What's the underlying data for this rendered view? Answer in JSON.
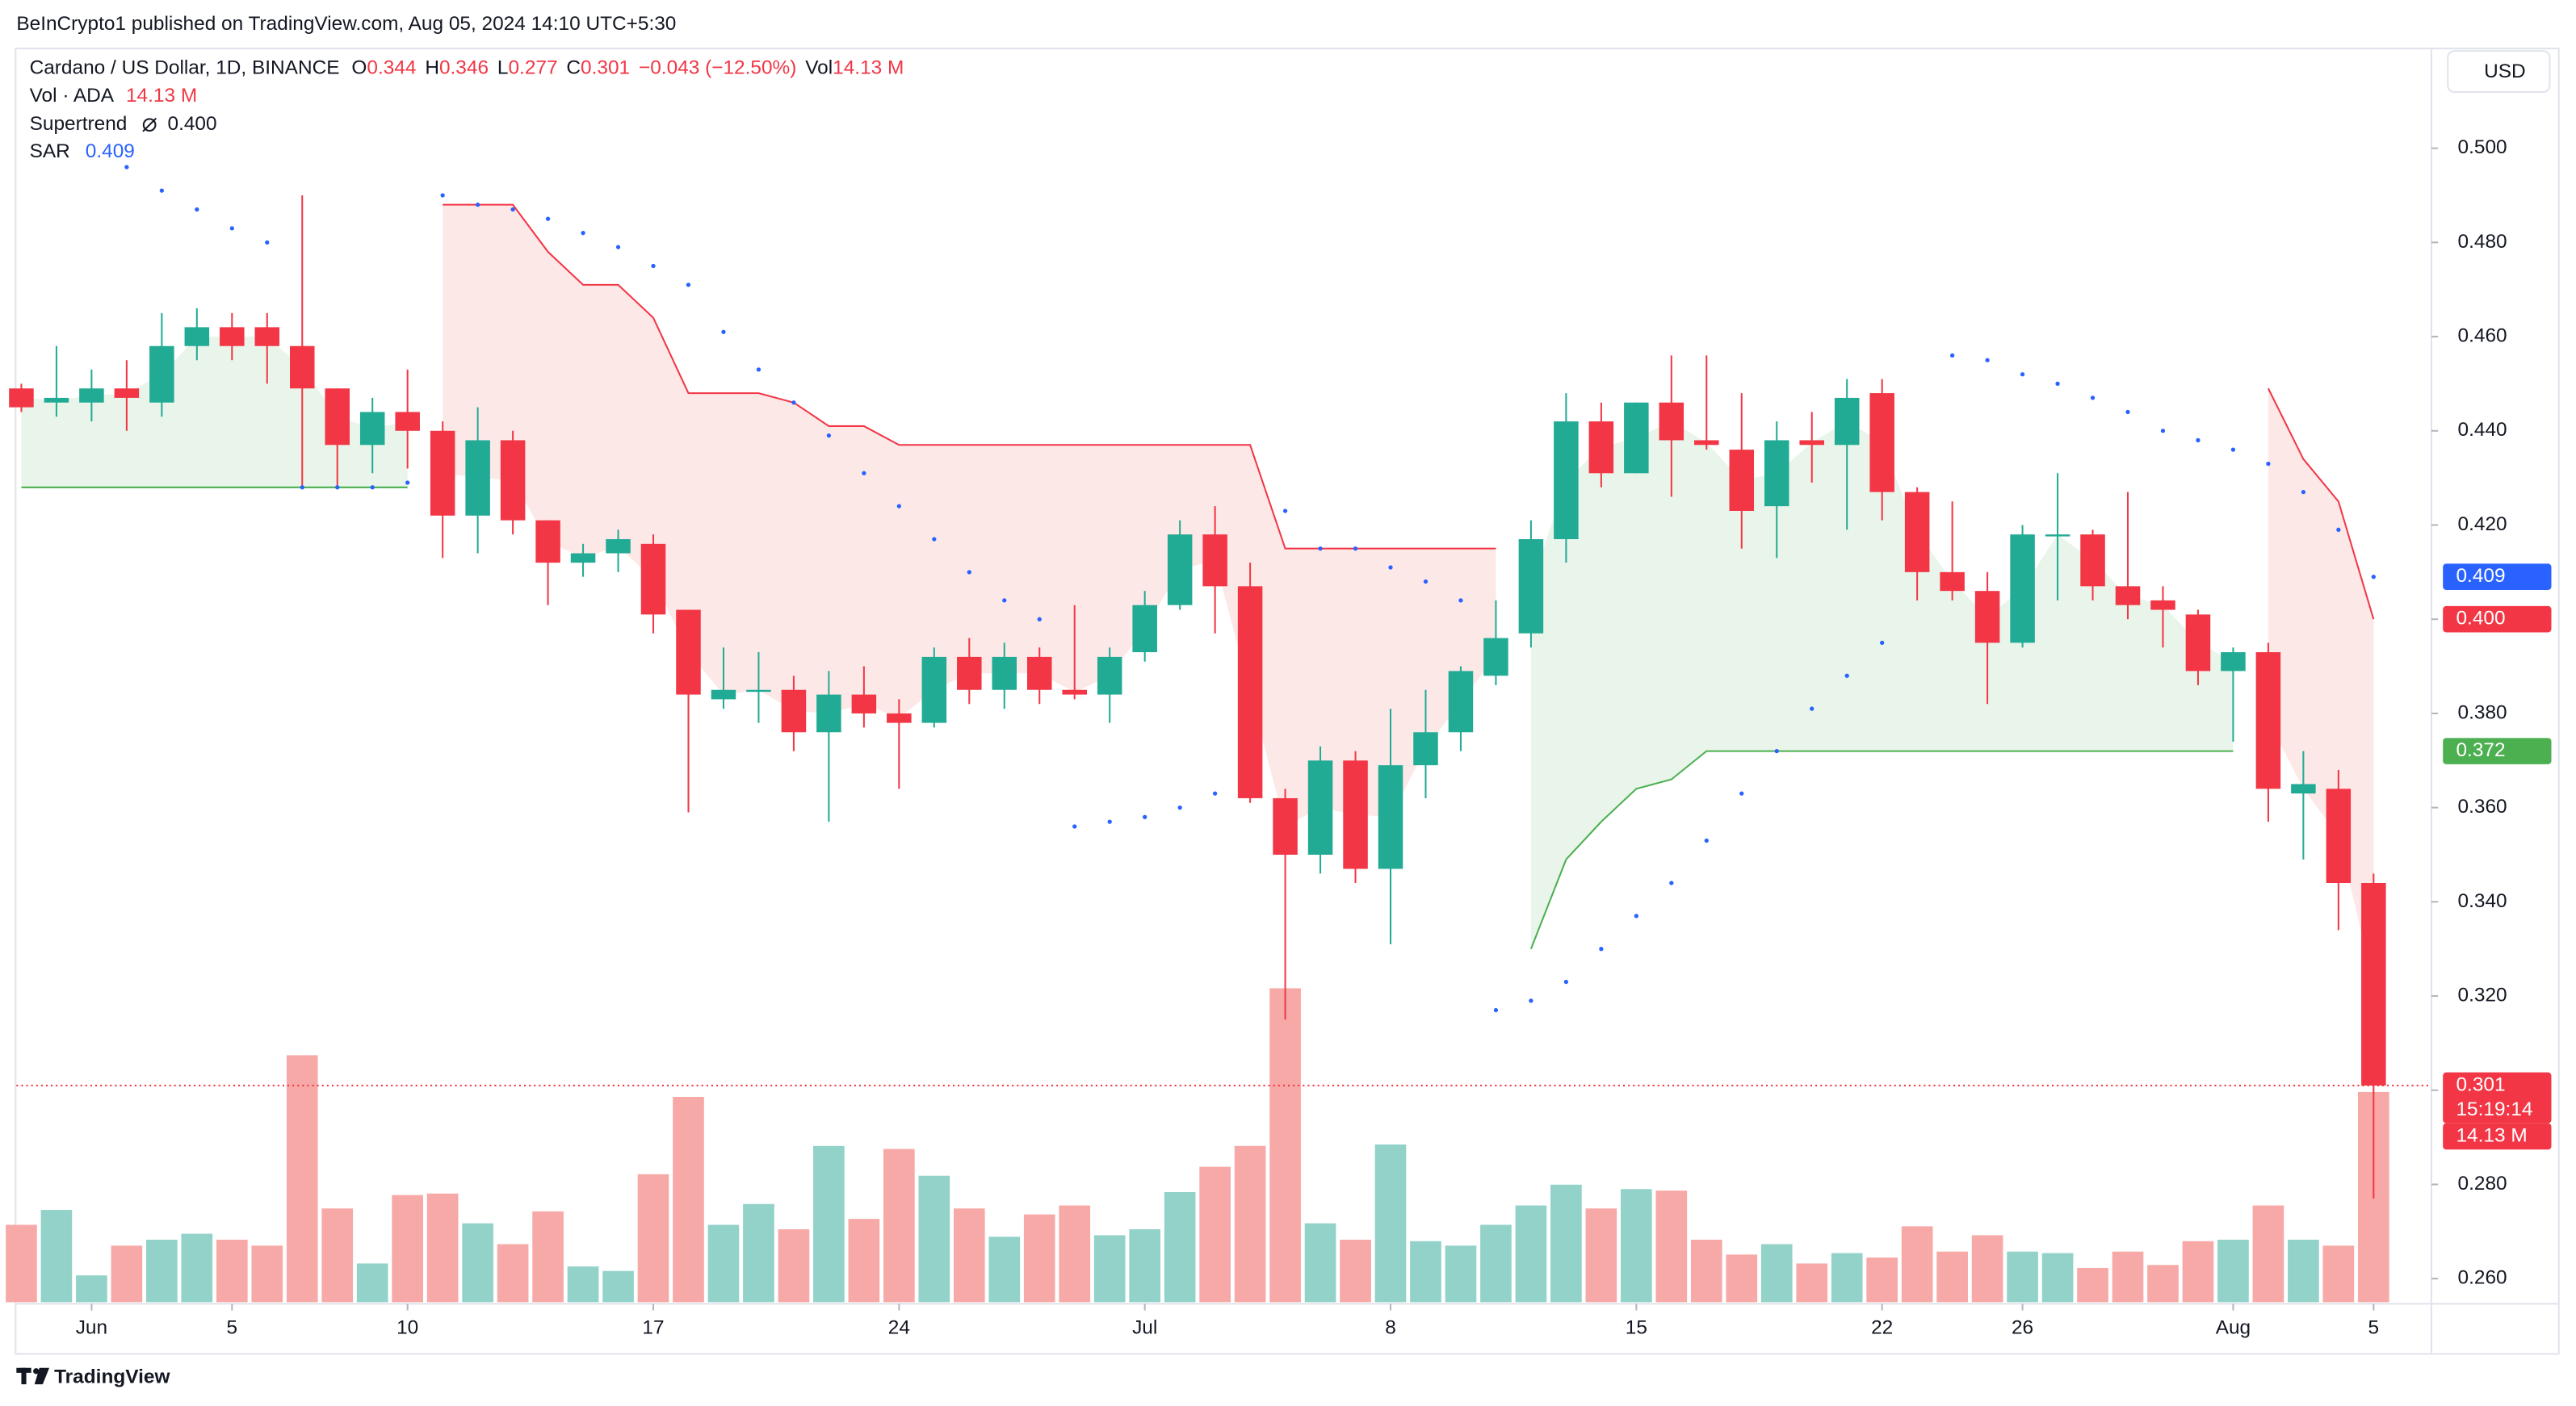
{
  "header": {
    "published": "BeInCrypto1 published on TradingView.com, Aug 05, 2024 14:10 UTC+5:30"
  },
  "legend": {
    "symbol": "Cardano / US Dollar, 1D, BINANCE",
    "o_label": "O",
    "h_label": "H",
    "l_label": "L",
    "c_label": "C",
    "change": "−0.043 (−12.50%)",
    "vol_label": "Vol",
    "vol_value": "14.13 M",
    "volume_title": "Vol · ADA",
    "supertrend_title": "Supertrend",
    "supertrend_value": "0.400",
    "sar_title": "SAR",
    "sar_value": "0.409"
  },
  "currency": "USD",
  "footer": {
    "brand": "TradingView"
  },
  "chart_data": {
    "type": "candlestick",
    "categories": [
      null,
      null,
      "Jun",
      null,
      null,
      null,
      "5",
      null,
      null,
      null,
      null,
      "10",
      null,
      null,
      null,
      null,
      null,
      null,
      "17",
      null,
      null,
      null,
      null,
      null,
      null,
      "24",
      null,
      null,
      null,
      null,
      null,
      null,
      "Jul",
      null,
      null,
      null,
      null,
      null,
      null,
      "8",
      null,
      null,
      null,
      null,
      null,
      null,
      "15",
      null,
      null,
      null,
      null,
      null,
      null,
      "22",
      null,
      null,
      null,
      "26",
      null,
      null,
      null,
      null,
      null,
      "Aug",
      null,
      null,
      null,
      "5"
    ],
    "open": [
      0.449,
      0.446,
      0.446,
      0.449,
      0.446,
      0.458,
      0.462,
      0.462,
      0.458,
      0.449,
      0.437,
      0.444,
      0.44,
      0.422,
      0.438,
      0.421,
      0.412,
      0.414,
      0.416,
      0.402,
      0.383,
      0.385,
      0.385,
      0.376,
      0.384,
      0.38,
      0.378,
      0.392,
      0.385,
      0.392,
      0.385,
      0.384,
      0.393,
      0.403,
      0.418,
      0.407,
      0.362,
      0.35,
      0.37,
      0.347,
      0.369,
      0.376,
      0.388,
      0.397,
      0.417,
      0.442,
      0.431,
      0.446,
      0.438,
      0.436,
      0.424,
      0.438,
      0.437,
      0.448,
      0.427,
      0.41,
      0.406,
      0.395,
      0.418,
      0.418,
      0.407,
      0.404,
      0.401,
      0.389,
      0.393,
      0.363,
      0.364,
      0.344
    ],
    "high": [
      0.45,
      0.458,
      0.453,
      0.455,
      0.465,
      0.466,
      0.465,
      0.465,
      0.49,
      0.449,
      0.447,
      0.453,
      0.442,
      0.445,
      0.44,
      0.421,
      0.416,
      0.419,
      0.418,
      0.402,
      0.394,
      0.393,
      0.388,
      0.389,
      0.39,
      0.383,
      0.394,
      0.396,
      0.395,
      0.394,
      0.403,
      0.394,
      0.406,
      0.421,
      0.424,
      0.412,
      0.364,
      0.373,
      0.372,
      0.381,
      0.385,
      0.39,
      0.404,
      0.421,
      0.448,
      0.446,
      0.446,
      0.456,
      0.456,
      0.448,
      0.442,
      0.444,
      0.451,
      0.451,
      0.428,
      0.425,
      0.41,
      0.42,
      0.431,
      0.419,
      0.427,
      0.407,
      0.402,
      0.394,
      0.395,
      0.372,
      0.368,
      0.346
    ],
    "low": [
      0.444,
      0.443,
      0.442,
      0.44,
      0.443,
      0.455,
      0.455,
      0.45,
      0.428,
      0.428,
      0.431,
      0.432,
      0.413,
      0.414,
      0.418,
      0.403,
      0.409,
      0.41,
      0.397,
      0.359,
      0.381,
      0.378,
      0.372,
      0.357,
      0.377,
      0.364,
      0.377,
      0.382,
      0.381,
      0.382,
      0.383,
      0.378,
      0.391,
      0.402,
      0.397,
      0.361,
      0.315,
      0.346,
      0.344,
      0.331,
      0.362,
      0.372,
      0.386,
      0.394,
      0.412,
      0.428,
      0.431,
      0.426,
      0.436,
      0.415,
      0.413,
      0.429,
      0.419,
      0.421,
      0.404,
      0.404,
      0.382,
      0.394,
      0.404,
      0.404,
      0.4,
      0.394,
      0.386,
      0.374,
      0.357,
      0.349,
      0.334,
      0.277
    ],
    "close": [
      0.445,
      0.447,
      0.449,
      0.447,
      0.458,
      0.462,
      0.458,
      0.458,
      0.449,
      0.437,
      0.444,
      0.44,
      0.422,
      0.438,
      0.421,
      0.412,
      0.414,
      0.417,
      0.401,
      0.384,
      0.385,
      0.385,
      0.376,
      0.384,
      0.38,
      0.378,
      0.392,
      0.385,
      0.392,
      0.385,
      0.384,
      0.392,
      0.403,
      0.418,
      0.407,
      0.362,
      0.35,
      0.37,
      0.347,
      0.369,
      0.376,
      0.389,
      0.396,
      0.417,
      0.442,
      0.431,
      0.446,
      0.438,
      0.437,
      0.423,
      0.438,
      0.437,
      0.447,
      0.427,
      0.41,
      0.406,
      0.395,
      0.418,
      0.418,
      0.407,
      0.403,
      0.402,
      0.389,
      0.393,
      0.364,
      0.365,
      0.344,
      0.301
    ],
    "volume": {
      "values": [
        5.2,
        6.2,
        1.8,
        3.8,
        4.2,
        4.6,
        4.2,
        3.8,
        16.6,
        6.3,
        2.6,
        7.2,
        7.3,
        5.3,
        3.9,
        6.1,
        2.4,
        2.1,
        8.6,
        13.8,
        5.2,
        6.6,
        4.9,
        10.5,
        5.6,
        10.3,
        8.5,
        6.3,
        4.4,
        5.9,
        6.5,
        4.5,
        4.9,
        7.4,
        9.1,
        10.5,
        21.1,
        5.3,
        4.2,
        10.6,
        4.1,
        3.8,
        5.2,
        6.5,
        7.9,
        6.3,
        7.6,
        7.5,
        4.2,
        3.2,
        3.9,
        2.6,
        3.3,
        3.0,
        5.1,
        3.4,
        4.5,
        3.4,
        3.3,
        2.3,
        3.4,
        2.5,
        4.1,
        4.2,
        6.5,
        4.2,
        3.8,
        14.13
      ],
      "up_color": "#92d2c9",
      "down_color": "#f7a9a7"
    },
    "supertrend": {
      "up_color": "#4caf50",
      "down_color": "#f23645",
      "up_fill": "#e9f5ea",
      "down_fill": "#fde8e8",
      "up_values": [
        0.428,
        0.428,
        0.428,
        0.428,
        0.428,
        0.428,
        0.428,
        0.428,
        0.428,
        0.428,
        0.428,
        0.428,
        null,
        null,
        null,
        null,
        null,
        null,
        null,
        null,
        null,
        null,
        null,
        null,
        null,
        null,
        null,
        null,
        null,
        null,
        null,
        null,
        null,
        null,
        null,
        null,
        null,
        null,
        null,
        null,
        null,
        null,
        null,
        0.33,
        0.349,
        0.357,
        0.364,
        0.366,
        0.372,
        0.372,
        0.372,
        0.372,
        0.372,
        0.372,
        0.372,
        0.372,
        0.372,
        0.372,
        0.372,
        0.372,
        0.372,
        0.372,
        0.372,
        0.372,
        null,
        null,
        null,
        null
      ],
      "down_values": [
        null,
        null,
        null,
        null,
        null,
        null,
        null,
        null,
        null,
        null,
        null,
        null,
        0.488,
        0.488,
        0.488,
        0.478,
        0.471,
        0.471,
        0.464,
        0.448,
        0.448,
        0.448,
        0.446,
        0.441,
        0.441,
        0.437,
        0.437,
        0.437,
        0.437,
        0.437,
        0.437,
        0.437,
        0.437,
        0.437,
        0.437,
        0.437,
        0.415,
        0.415,
        0.415,
        0.415,
        0.415,
        0.415,
        0.415,
        null,
        null,
        null,
        null,
        null,
        null,
        null,
        null,
        null,
        null,
        null,
        null,
        null,
        null,
        null,
        null,
        null,
        null,
        null,
        null,
        null,
        0.449,
        0.434,
        0.425,
        0.4
      ]
    },
    "sar": {
      "color": "#2962ff",
      "values": [
        null,
        null,
        null,
        0.496,
        0.491,
        0.487,
        0.483,
        0.48,
        0.428,
        0.428,
        0.428,
        0.429,
        0.49,
        0.488,
        0.487,
        0.485,
        0.482,
        0.479,
        0.475,
        0.471,
        0.461,
        0.453,
        0.446,
        0.439,
        0.431,
        0.424,
        0.417,
        0.41,
        0.404,
        0.4,
        0.356,
        0.357,
        0.358,
        0.36,
        0.363,
        null,
        0.423,
        0.415,
        0.415,
        0.411,
        0.408,
        0.404,
        0.317,
        0.319,
        0.323,
        0.33,
        0.337,
        0.344,
        0.353,
        0.363,
        0.372,
        0.381,
        0.388,
        0.395,
        null,
        0.456,
        0.455,
        0.452,
        0.45,
        0.447,
        0.444,
        0.44,
        0.438,
        0.436,
        0.433,
        0.427,
        0.419,
        0.409
      ]
    },
    "up_color": "#22ab94",
    "down_color": "#f23645",
    "ylim": [
      0.255,
      0.521
    ],
    "yticks": [
      {
        "value": 0.26,
        "label": "0.260"
      },
      {
        "value": 0.28,
        "label": "0.280"
      },
      {
        "value": 0.3,
        "label": "0.300"
      },
      {
        "value": 0.32,
        "label": "0.320"
      },
      {
        "value": 0.34,
        "label": "0.340"
      },
      {
        "value": 0.36,
        "label": "0.360"
      },
      {
        "value": 0.38,
        "label": "0.380"
      },
      {
        "value": 0.4,
        "label": "0.400"
      },
      {
        "value": 0.42,
        "label": "0.420"
      },
      {
        "value": 0.44,
        "label": "0.440"
      },
      {
        "value": 0.46,
        "label": "0.460"
      },
      {
        "value": 0.48,
        "label": "0.480"
      },
      {
        "value": 0.5,
        "label": "0.500"
      }
    ],
    "countdown": "15:19:14",
    "badge_colors": {
      "sar": "#2962ff",
      "supertrend_down": "#f23645",
      "supertrend_up": "#4caf50",
      "price": "#f23645",
      "volume": "#f23645"
    }
  }
}
